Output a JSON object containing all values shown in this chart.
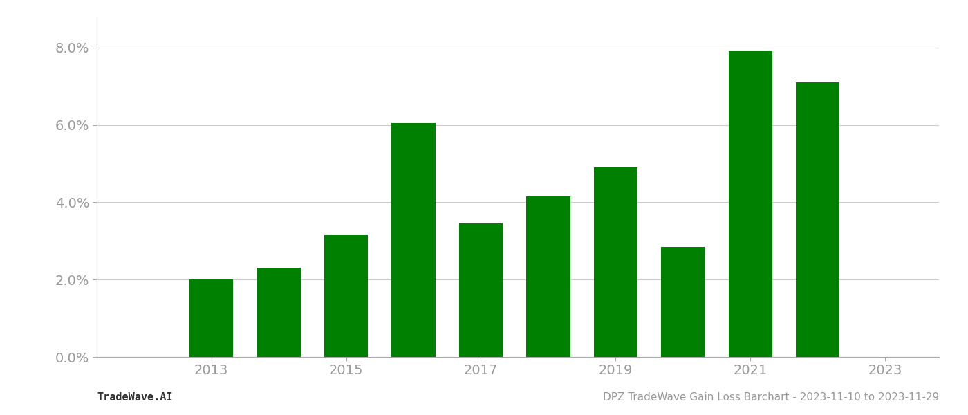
{
  "years": [
    2013,
    2014,
    2015,
    2016,
    2017,
    2018,
    2019,
    2020,
    2021,
    2022
  ],
  "values": [
    0.02,
    0.023,
    0.0315,
    0.0605,
    0.0345,
    0.0415,
    0.049,
    0.0285,
    0.079,
    0.071
  ],
  "bar_color": "#008000",
  "background_color": "#ffffff",
  "grid_color": "#cccccc",
  "axis_color": "#aaaaaa",
  "tick_label_color": "#999999",
  "yticks": [
    0.0,
    0.02,
    0.04,
    0.06,
    0.08
  ],
  "ytick_labels": [
    "0.0%",
    "2.0%",
    "4.0%",
    "6.0%",
    "8.0%"
  ],
  "xtick_positions": [
    2013,
    2015,
    2017,
    2019,
    2021,
    2023
  ],
  "xlim": [
    2011.3,
    2023.8
  ],
  "ylim": [
    0.0,
    0.088
  ],
  "tick_fontsize": 14,
  "footer_fontsize": 11,
  "footer_left": "TradeWave.AI",
  "footer_right": "DPZ TradeWave Gain Loss Barchart - 2023-11-10 to 2023-11-29",
  "bar_width": 0.65
}
